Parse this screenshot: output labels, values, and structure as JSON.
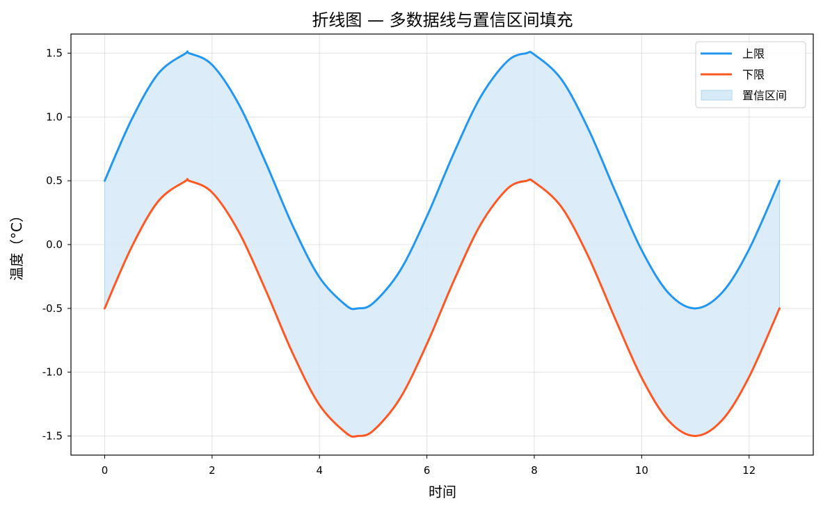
{
  "chart_data": {
    "type": "line",
    "title": "折线图 — 多数据线与置信区间填充",
    "xlabel": "时间",
    "ylabel": "温度（°C）",
    "xlim": [
      -0.628,
      13.195
    ],
    "ylim": [
      -1.65,
      1.65
    ],
    "xticks": [
      0,
      2,
      4,
      6,
      8,
      10,
      12
    ],
    "yticks": [
      -1.5,
      -1.0,
      -0.5,
      0.0,
      0.5,
      1.0,
      1.5
    ],
    "grid": true,
    "legend_position": "top-right",
    "x": [
      0,
      0.5,
      1.0,
      1.5,
      1.571,
      2.0,
      2.5,
      3.0,
      3.5,
      4.0,
      4.5,
      4.712,
      5.0,
      5.5,
      6.0,
      6.5,
      7.0,
      7.5,
      7.854,
      8.0,
      8.5,
      9.0,
      9.5,
      10.0,
      10.5,
      10.996,
      11.5,
      12.0,
      12.566
    ],
    "series": [
      {
        "name": "上限",
        "color": "#2196F3",
        "values": [
          0.5,
          0.979,
          1.341,
          1.497,
          1.5,
          1.409,
          1.098,
          0.641,
          0.149,
          -0.257,
          -0.478,
          -0.5,
          -0.459,
          -0.205,
          0.221,
          0.715,
          1.157,
          1.438,
          1.5,
          1.489,
          1.298,
          0.912,
          0.425,
          -0.044,
          -0.38,
          -0.5,
          -0.375,
          -0.037,
          0.5
        ]
      },
      {
        "name": "下限",
        "color": "#FF5722",
        "values": [
          -0.5,
          -0.021,
          0.341,
          0.497,
          0.5,
          0.409,
          0.098,
          -0.359,
          -0.851,
          -1.257,
          -1.478,
          -1.5,
          -1.459,
          -1.205,
          -0.779,
          -0.285,
          0.157,
          0.438,
          0.5,
          0.489,
          0.298,
          -0.088,
          -0.575,
          -1.044,
          -1.38,
          -1.5,
          -1.375,
          -1.037,
          -0.5
        ]
      }
    ],
    "fill": {
      "name": "置信区间",
      "color": "#D6EAF8",
      "between": [
        "上限",
        "下限"
      ]
    }
  }
}
